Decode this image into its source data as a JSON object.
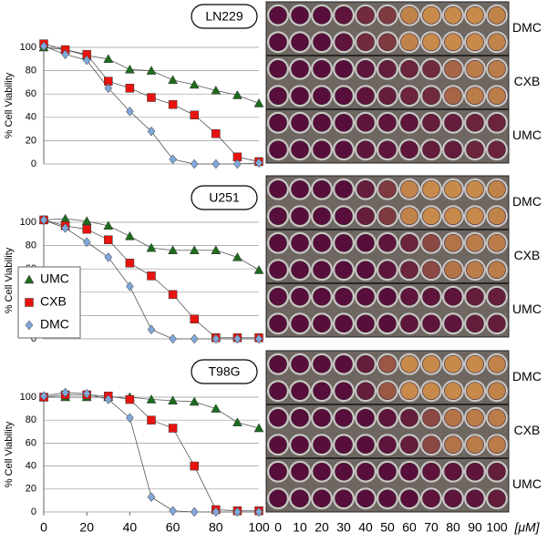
{
  "chart_data": [
    {
      "type": "line",
      "title": "LN229",
      "y_label": "% Cell Viability",
      "x": [
        0,
        10,
        20,
        30,
        40,
        50,
        60,
        70,
        80,
        90,
        100
      ],
      "xlim": [
        0,
        100
      ],
      "ylim": [
        0,
        100
      ],
      "yticks": [
        0,
        20,
        40,
        60,
        80,
        100
      ],
      "grid": true,
      "legend": false,
      "series": [
        {
          "name": "UMC",
          "color": "#1e6b1e",
          "marker": "triangle",
          "values": [
            100,
            98,
            93,
            90,
            81,
            80,
            72,
            68,
            63,
            59,
            52
          ]
        },
        {
          "name": "CXB",
          "color": "#e8140f",
          "marker": "square",
          "values": [
            103,
            98,
            94,
            71,
            65,
            57,
            51,
            42,
            26,
            6,
            2
          ]
        },
        {
          "name": "DMC",
          "color": "#7fa7d8",
          "marker": "diamond",
          "values": [
            101,
            94,
            89,
            65,
            45,
            28,
            4,
            0,
            0,
            0,
            1
          ]
        }
      ]
    },
    {
      "type": "line",
      "title": "U251",
      "y_label": "% Cell Viability",
      "x": [
        0,
        10,
        20,
        30,
        40,
        50,
        60,
        70,
        80,
        90,
        100
      ],
      "xlim": [
        0,
        100
      ],
      "ylim": [
        0,
        100
      ],
      "yticks": [
        0,
        20,
        40,
        60,
        80,
        100
      ],
      "grid": true,
      "legend": "lower left",
      "series": [
        {
          "name": "UMC",
          "color": "#1e6b1e",
          "marker": "triangle",
          "values": [
            102,
            103,
            101,
            97,
            88,
            78,
            76,
            76,
            76,
            70,
            59
          ]
        },
        {
          "name": "CXB",
          "color": "#e8140f",
          "marker": "square",
          "values": [
            102,
            97,
            94,
            85,
            65,
            54,
            38,
            17,
            1,
            1,
            1
          ]
        },
        {
          "name": "DMC",
          "color": "#7fa7d8",
          "marker": "diamond",
          "values": [
            102,
            95,
            83,
            70,
            45,
            8,
            0,
            0,
            0,
            0,
            0
          ]
        }
      ]
    },
    {
      "type": "line",
      "title": "T98G",
      "y_label": "% Cell Viability",
      "x": [
        0,
        10,
        20,
        30,
        40,
        50,
        60,
        70,
        80,
        90,
        100
      ],
      "xlim": [
        0,
        100
      ],
      "xticks": [
        0,
        20,
        40,
        60,
        80,
        100
      ],
      "ylim": [
        0,
        100
      ],
      "yticks": [
        0,
        20,
        40,
        60,
        80,
        100
      ],
      "grid": true,
      "legend": false,
      "series": [
        {
          "name": "UMC",
          "color": "#1e6b1e",
          "marker": "triangle",
          "values": [
            100,
            100,
            100,
            100,
            100,
            98,
            97,
            96,
            90,
            78,
            73
          ]
        },
        {
          "name": "CXB",
          "color": "#e8140f",
          "marker": "square",
          "values": [
            100,
            102,
            102,
            101,
            98,
            80,
            73,
            40,
            2,
            1,
            1
          ]
        },
        {
          "name": "DMC",
          "color": "#7fa7d8",
          "marker": "diamond",
          "values": [
            101,
            104,
            103,
            98,
            82,
            13,
            1,
            0,
            0,
            0,
            0
          ]
        }
      ]
    }
  ],
  "plates": [
    {
      "rows": [
        "DMC",
        "CXB",
        "UMC"
      ]
    },
    {
      "rows": [
        "DMC",
        "CXB",
        "UMC"
      ]
    },
    {
      "rows": [
        "DMC",
        "CXB",
        "UMC"
      ]
    }
  ],
  "plate_x_labels": [
    "0",
    "10",
    "20",
    "30",
    "40",
    "50",
    "60",
    "70",
    "80",
    "90",
    "100"
  ],
  "plate_unit": "[μM]"
}
